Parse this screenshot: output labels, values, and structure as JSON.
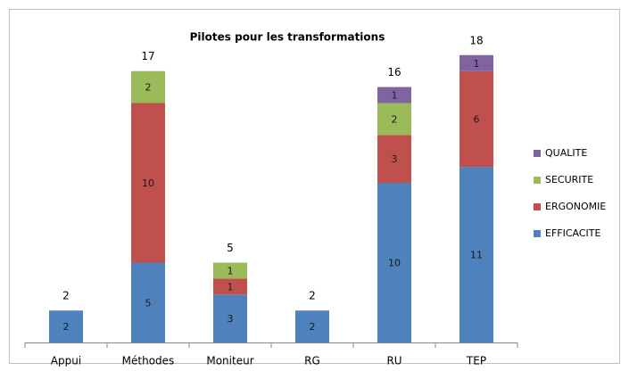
{
  "chart_data": {
    "type": "stacked_bar",
    "title": "Pilotes pour les transformations",
    "categories": [
      "Appui",
      "Méthodes",
      "Moniteur",
      "RG",
      "RU",
      "TEP"
    ],
    "series": [
      {
        "name": "EFFICACITE",
        "color": "#4f81bd",
        "values": [
          2,
          5,
          3,
          2,
          10,
          11
        ]
      },
      {
        "name": "ERGONOMIE",
        "color": "#c0504d",
        "values": [
          null,
          10,
          1,
          null,
          3,
          6
        ]
      },
      {
        "name": "SECURITE",
        "color": "#9bbb59",
        "values": [
          null,
          2,
          1,
          null,
          2,
          null
        ]
      },
      {
        "name": "QUALITE",
        "color": "#8064a2",
        "values": [
          null,
          null,
          null,
          null,
          1,
          1
        ]
      }
    ],
    "totals": [
      2,
      17,
      5,
      2,
      16,
      18
    ],
    "ylim": [
      0,
      20
    ],
    "legend": "right"
  }
}
